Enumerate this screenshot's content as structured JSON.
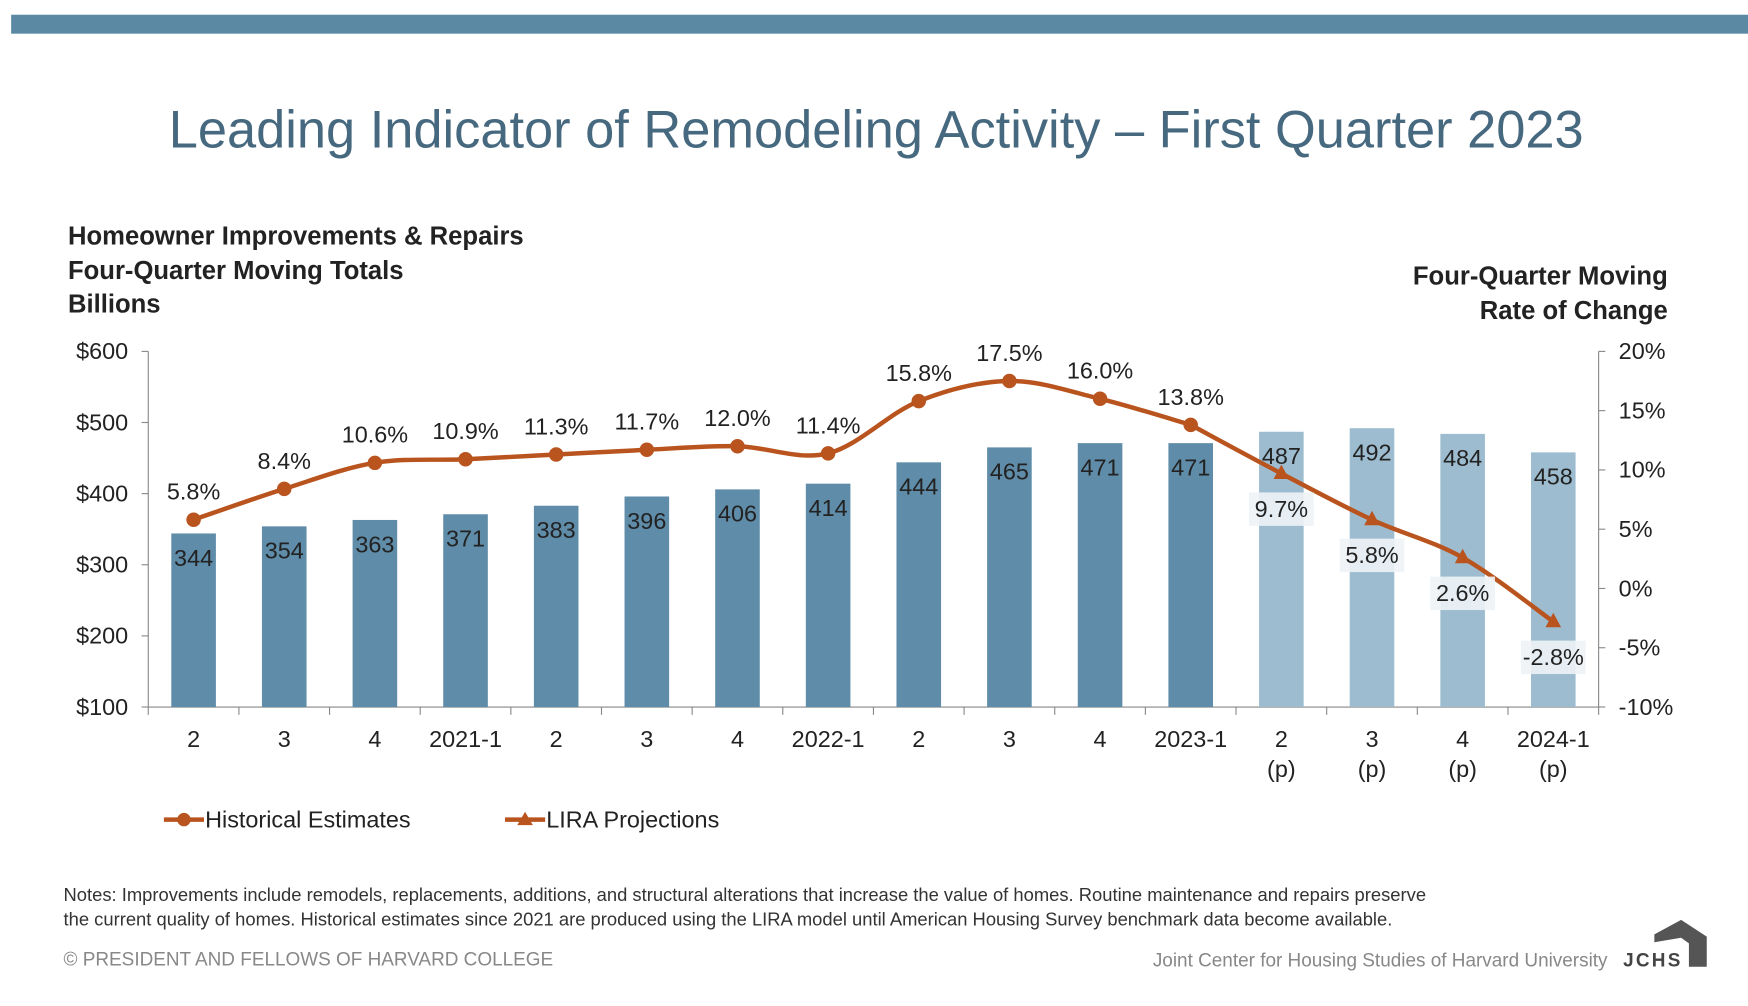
{
  "title": "Leading Indicator of Remodeling Activity – First Quarter 2023",
  "left_axis_title": [
    "Homeowner Improvements & Repairs",
    "Four-Quarter Moving Totals",
    "Billions"
  ],
  "right_axis_title": [
    "Four-Quarter Moving",
    "Rate of Change"
  ],
  "notes": [
    "Notes: Improvements include remodels, replacements, additions, and structural alterations that increase the value of homes. Routine maintenance and repairs preserve",
    "the current quality of homes. Historical estimates since 2021 are produced using the LIRA model until American Housing Survey benchmark data become available."
  ],
  "copyright": "© PRESIDENT AND FELLOWS OF HARVARD COLLEGE",
  "org": "Joint Center for Housing Studies of Harvard University",
  "logo_text": "JCHS",
  "colors": {
    "bar": "#5f8ca8",
    "bar_projected": "#9dbccf",
    "line": "#b9541f",
    "title": "#46697f",
    "band": "#5b88a3"
  },
  "chart_data": {
    "type": "bar+line",
    "categories": [
      "2",
      "3",
      "4",
      "2021-1",
      "2",
      "3",
      "4",
      "2022-1",
      "2",
      "3",
      "4",
      "2023-1",
      "2",
      "3",
      "4",
      "2024-1"
    ],
    "category_sub": [
      "",
      "",
      "",
      "",
      "",
      "",
      "",
      "",
      "",
      "",
      "",
      "",
      "(p)",
      "(p)",
      "(p)",
      "(p)"
    ],
    "projected_from_index": 12,
    "bars": {
      "name": "Four-Quarter Moving Totals ($B)",
      "values": [
        344,
        354,
        363,
        371,
        383,
        396,
        406,
        414,
        444,
        465,
        471,
        471,
        487,
        492,
        484,
        458
      ]
    },
    "series": [
      {
        "name": "Historical Estimates",
        "marker": "circle",
        "values": [
          5.8,
          8.4,
          10.6,
          10.9,
          11.3,
          11.7,
          12.0,
          11.4,
          15.8,
          17.5,
          16.0,
          13.8,
          null,
          null,
          null,
          null
        ]
      },
      {
        "name": "LIRA Projections",
        "marker": "triangle",
        "values": [
          null,
          null,
          null,
          null,
          null,
          null,
          null,
          null,
          null,
          null,
          null,
          13.8,
          9.7,
          5.8,
          2.6,
          -2.8
        ]
      }
    ],
    "line_labels": [
      "5.8%",
      "8.4%",
      "10.6%",
      "10.9%",
      "11.3%",
      "11.7%",
      "12.0%",
      "11.4%",
      "15.8%",
      "17.5%",
      "16.0%",
      "13.8%",
      "9.7%",
      "5.8%",
      "2.6%",
      "-2.8%"
    ],
    "y_left": {
      "range": [
        100,
        600
      ],
      "ticks": [
        "$600",
        "$500",
        "$400",
        "$300",
        "$200",
        "$100"
      ]
    },
    "y_right": {
      "range": [
        -10,
        20
      ],
      "ticks": [
        "20%",
        "15%",
        "10%",
        "5%",
        "0%",
        "-5%",
        "-10%"
      ]
    },
    "legend": [
      "Historical Estimates",
      "LIRA Projections"
    ],
    "legend_position": "bottom-left"
  }
}
